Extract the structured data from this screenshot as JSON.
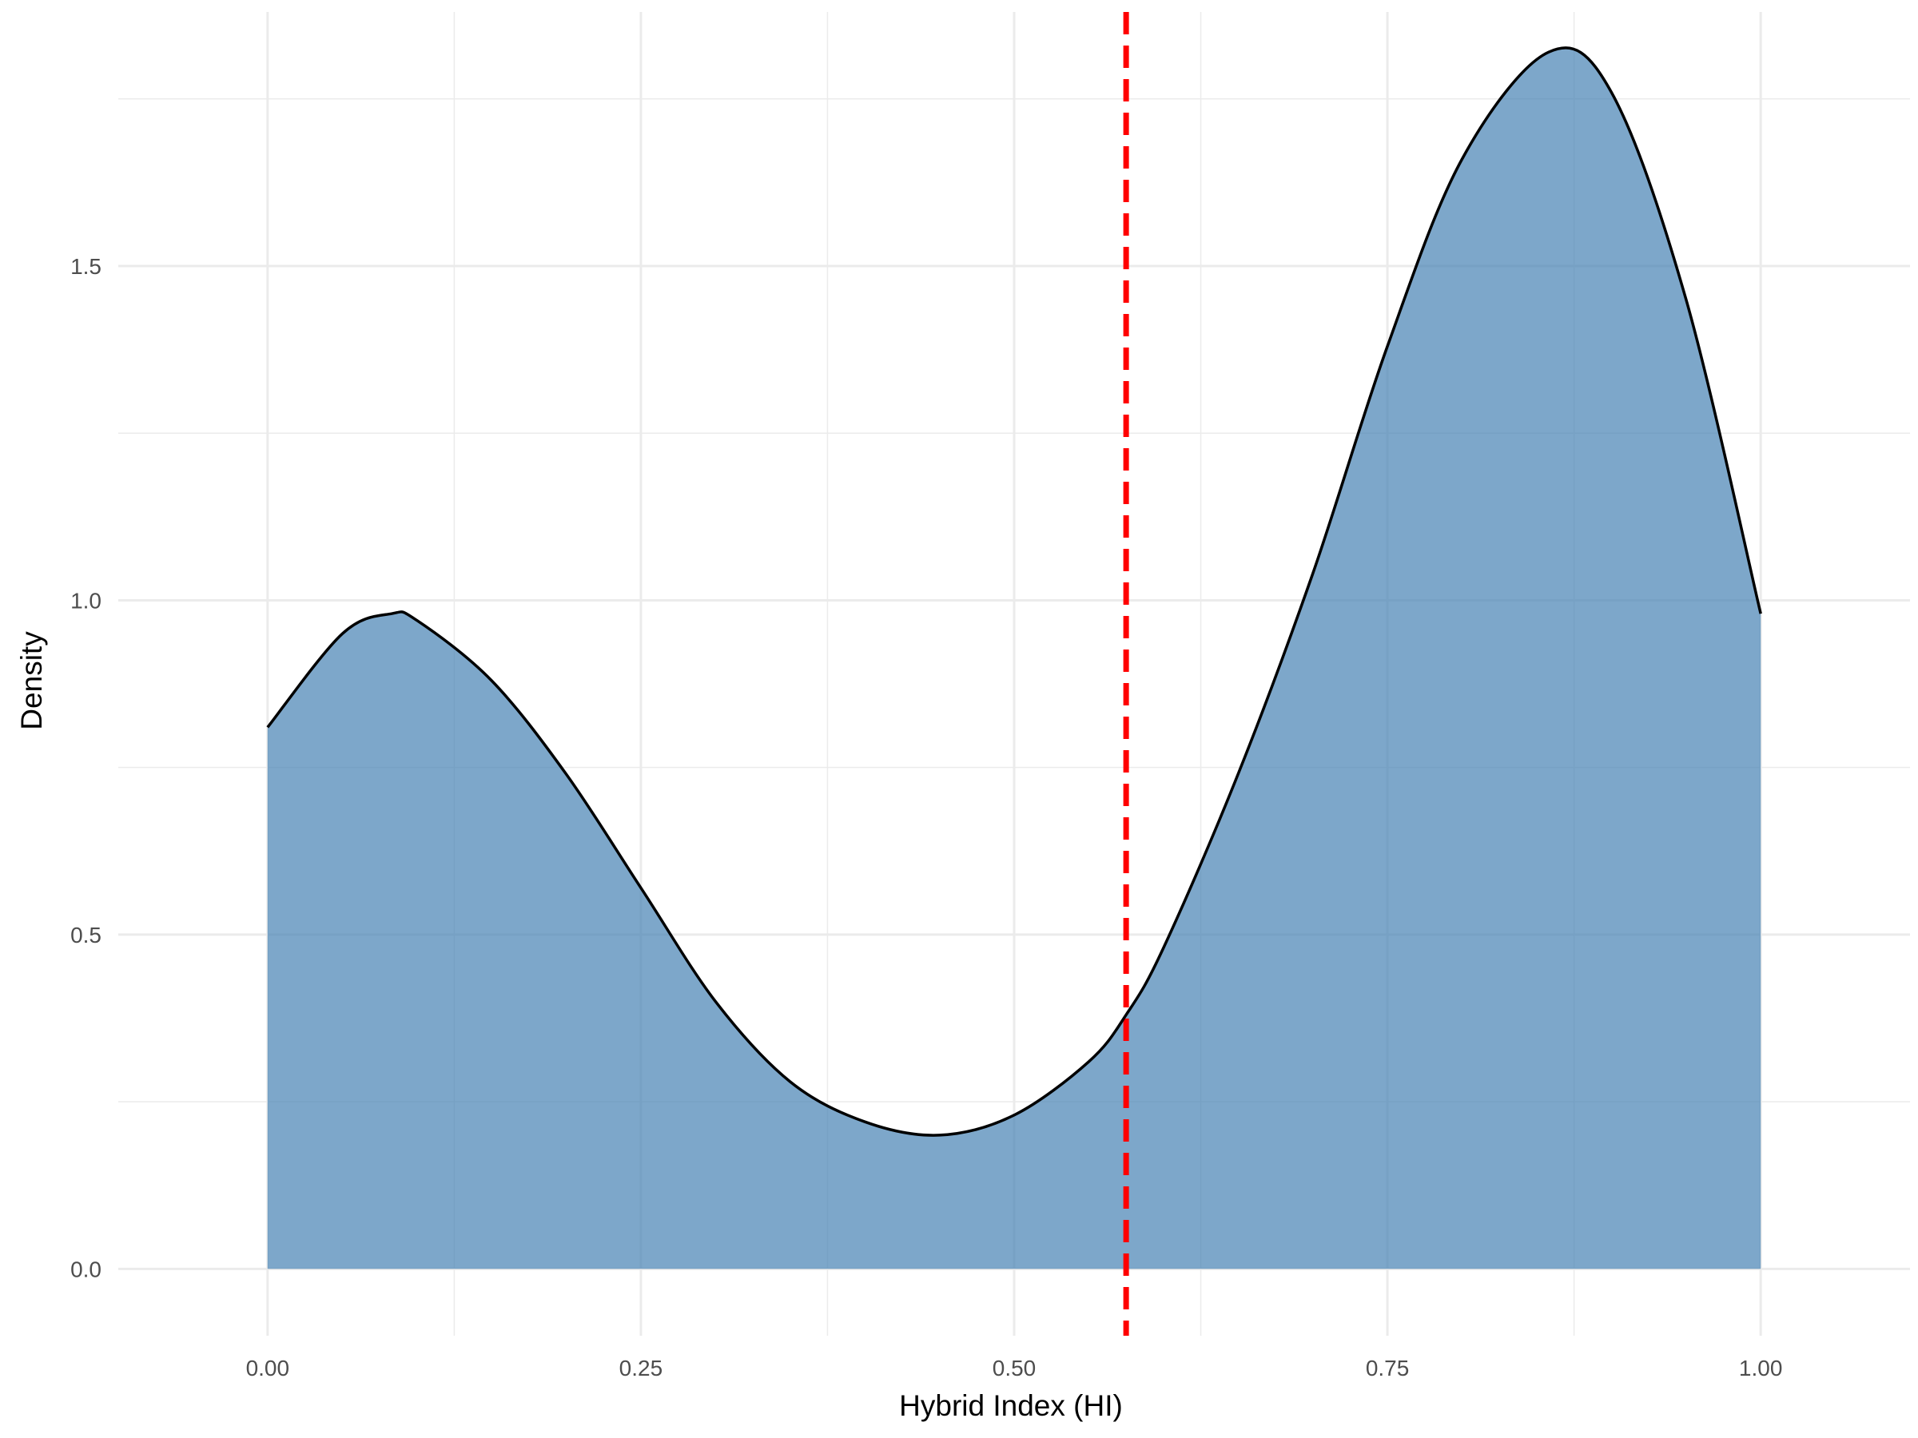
{
  "chart_data": {
    "type": "area",
    "title": "",
    "xlabel": "Hybrid Index (HI)",
    "ylabel": "Density",
    "xlim": [
      -0.1,
      1.1
    ],
    "ylim": [
      -0.1,
      1.88
    ],
    "x_ticks": [
      "0.00",
      "0.25",
      "0.50",
      "0.75",
      "1.00"
    ],
    "y_ticks": [
      "0.0",
      "0.5",
      "1.0",
      "1.5"
    ],
    "grid": true,
    "legend": "none",
    "fill_color": "#4682B4",
    "fill_opacity": 0.7,
    "line_color": "#000000",
    "reference_line": {
      "x": 0.575,
      "style": "dashed",
      "color": "#FF0000"
    },
    "series": [
      {
        "x": [
          0.0,
          0.05,
          0.083,
          0.1,
          0.15,
          0.2,
          0.25,
          0.3,
          0.35,
          0.4,
          0.45,
          0.5,
          0.55,
          0.575,
          0.6,
          0.65,
          0.7,
          0.75,
          0.8,
          0.858,
          0.9,
          0.95,
          1.0
        ],
        "y": [
          0.81,
          0.95,
          0.98,
          0.97,
          0.88,
          0.74,
          0.57,
          0.4,
          0.28,
          0.22,
          0.2,
          0.23,
          0.31,
          0.38,
          0.48,
          0.74,
          1.04,
          1.38,
          1.66,
          1.82,
          1.76,
          1.45,
          0.98
        ]
      }
    ]
  }
}
